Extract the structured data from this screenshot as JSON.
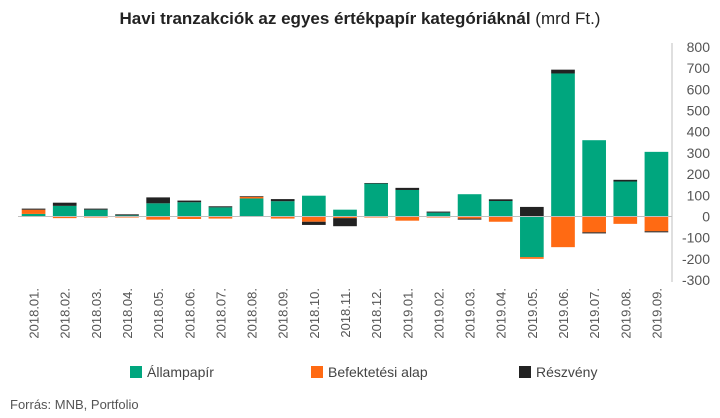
{
  "title": {
    "main": "Havi tranzakciók az egyes értékpapír kategóriáknál",
    "unit": "(mrd Ft.)"
  },
  "source": "Forrás: MNB, Portfolio",
  "colors": {
    "series": [
      "#00a67e",
      "#ff6a13",
      "#222222"
    ],
    "axis": "#bfbfbf",
    "text": "#555555"
  },
  "chart_data": {
    "type": "bar",
    "stacked": true,
    "categories": [
      "2018.01.",
      "2018.02.",
      "2018.03.",
      "2018.04.",
      "2018.05.",
      "2018.06.",
      "2018.07.",
      "2018.08.",
      "2018.09.",
      "2018.10.",
      "2018.11.",
      "2018.12.",
      "2019.01.",
      "2019.02.",
      "2019.03.",
      "2019.04.",
      "2019.05.",
      "2019.06.",
      "2019.07.",
      "2019.08.",
      "2019.09."
    ],
    "series": [
      {
        "name": "Állampapír",
        "values": [
          12,
          50,
          32,
          5,
          62,
          67,
          43,
          85,
          72,
          98,
          32,
          155,
          125,
          18,
          105,
          73,
          -192,
          675,
          360,
          165,
          305
        ]
      },
      {
        "name": "Befektetési alap",
        "values": [
          20,
          -8,
          -5,
          -5,
          -15,
          -12,
          -10,
          8,
          -10,
          -25,
          -8,
          -5,
          -20,
          -5,
          -10,
          -25,
          -8,
          -145,
          -75,
          -35,
          -70
        ]
      },
      {
        "name": "Részvény",
        "values": [
          5,
          15,
          5,
          5,
          28,
          8,
          5,
          3,
          10,
          -15,
          -38,
          3,
          10,
          5,
          -5,
          8,
          45,
          18,
          -5,
          8,
          -5
        ]
      }
    ],
    "yticks": [
      -300,
      -200,
      -100,
      0,
      100,
      200,
      300,
      400,
      500,
      600,
      700,
      800
    ],
    "ylim": [
      -300,
      800
    ],
    "y_axis_side": "right",
    "legend_position": "bottom",
    "grid": false
  }
}
